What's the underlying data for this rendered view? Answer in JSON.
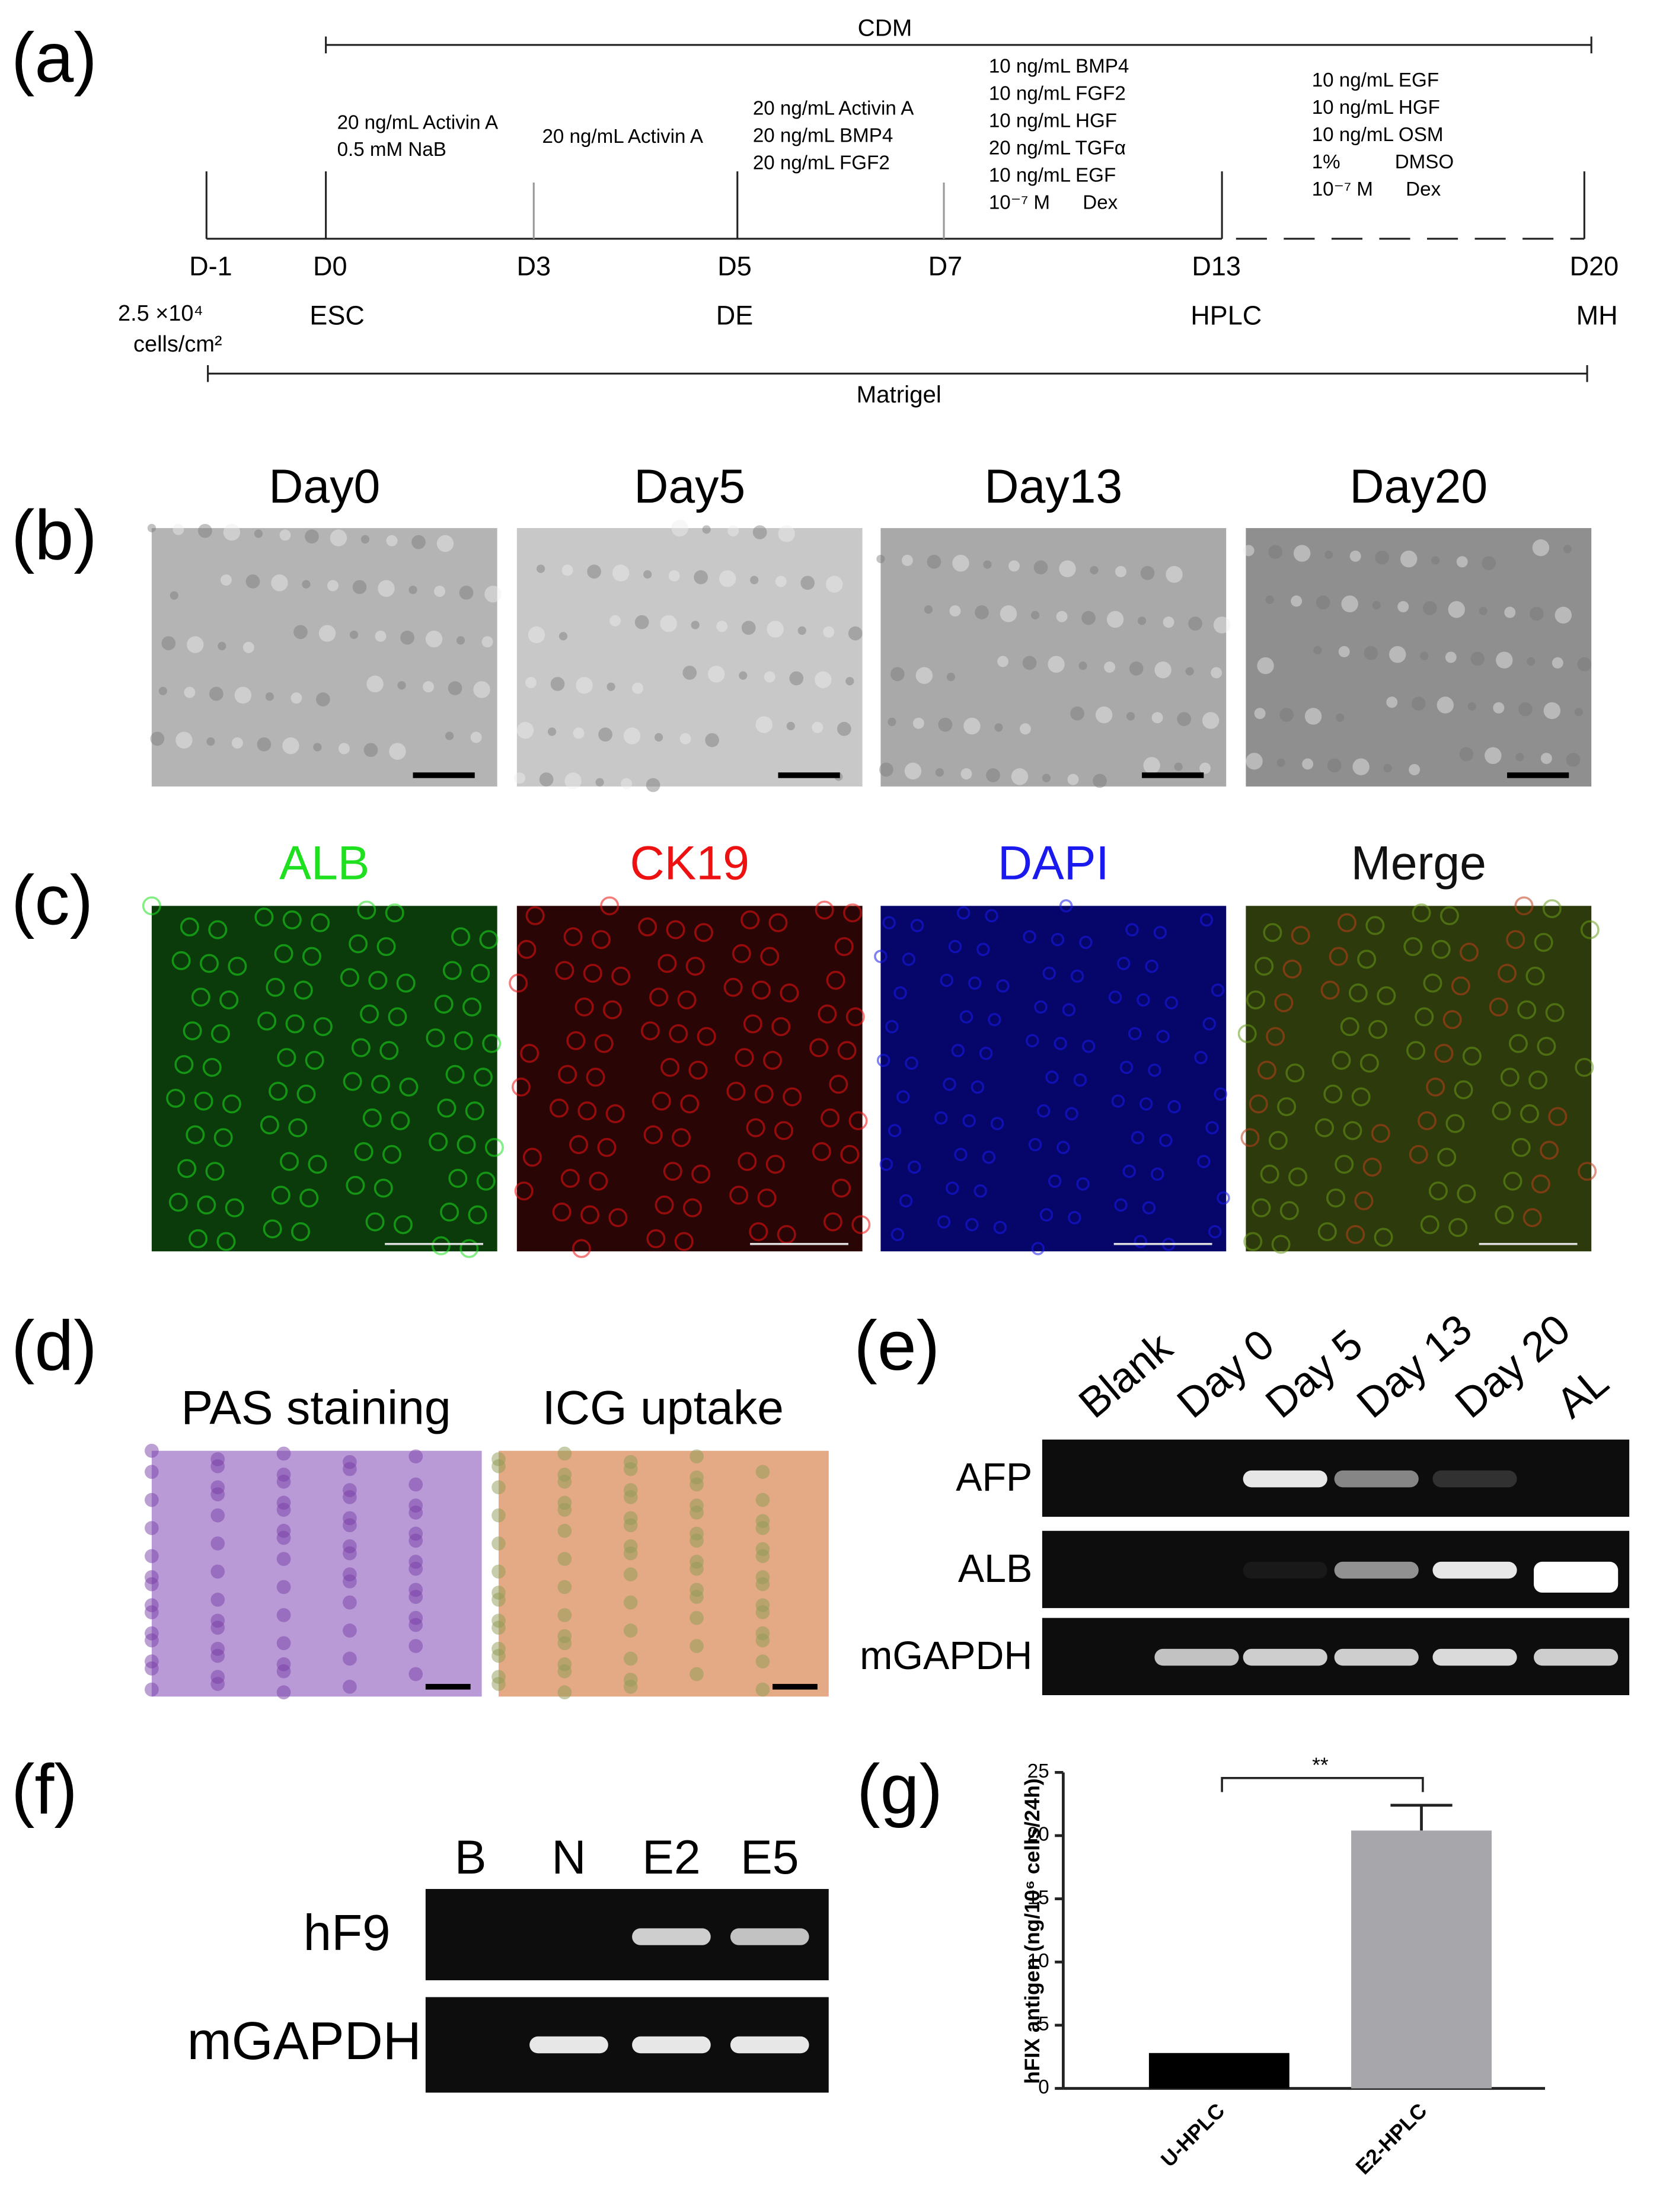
{
  "panel_a": {
    "label": "(a)",
    "top_bar": "CDM",
    "bottom_bar": "Matrigel",
    "stages": [
      [
        "20 ng/mL Activin A",
        "0.5 mM NaB"
      ],
      [
        "20 ng/mL Activin A"
      ],
      [
        "20 ng/mL Activin A",
        "20 ng/mL BMP4",
        "20 ng/mL FGF2"
      ],
      [
        "10 ng/mL BMP4",
        "10 ng/mL FGF2",
        "10 ng/mL HGF",
        "20 ng/mL TGFα",
        "10 ng/mL EGF",
        "10⁻⁷ M      Dex"
      ],
      [
        "10 ng/mL EGF",
        "10 ng/mL HGF",
        "10 ng/mL OSM",
        "1%          DMSO",
        "10⁻⁷ M      Dex"
      ]
    ],
    "days": [
      "D-1",
      "D0",
      "D3",
      "D5",
      "D7",
      "D13",
      "D20"
    ],
    "seeding": [
      "2.5 ×10⁴",
      "cells/cm²"
    ],
    "stage_names": [
      "ESC",
      "DE",
      "HPLC",
      "MH"
    ]
  },
  "panel_b": {
    "label": "(b)",
    "titles": [
      "Day0",
      "Day5",
      "Day13",
      "Day20"
    ]
  },
  "panel_c": {
    "label": "(c)",
    "titles": [
      "ALB",
      "CK19",
      "DAPI",
      "Merge"
    ]
  },
  "panel_d": {
    "label": "(d)",
    "titles": [
      "PAS staining",
      "ICG uptake"
    ]
  },
  "panel_e": {
    "label": "(e)",
    "lanes": [
      "Blank",
      "Day 0",
      "Day 5",
      "Day 13",
      "Day 20",
      "AL"
    ],
    "rows": [
      "AFP",
      "ALB",
      "mGAPDH"
    ]
  },
  "panel_f": {
    "label": "(f)",
    "lanes": [
      "B",
      "N",
      "E2",
      "E5"
    ],
    "rows": [
      "hF9",
      "mGAPDH"
    ]
  },
  "chart_data": {
    "type": "bar",
    "label": "(g)",
    "y_label": "hFIX antigen (ng/10⁶ cells/24h)",
    "categories": [
      "U-HPLC",
      "E2-HPLC"
    ],
    "values": [
      2.8,
      20.4
    ],
    "errors": [
      null,
      2
    ],
    "colors": [
      "#000000",
      "#a6a6ab"
    ],
    "ylim": [
      0,
      25
    ],
    "yticks": [
      0,
      5,
      10,
      15,
      20,
      25
    ],
    "annotation": "**"
  }
}
